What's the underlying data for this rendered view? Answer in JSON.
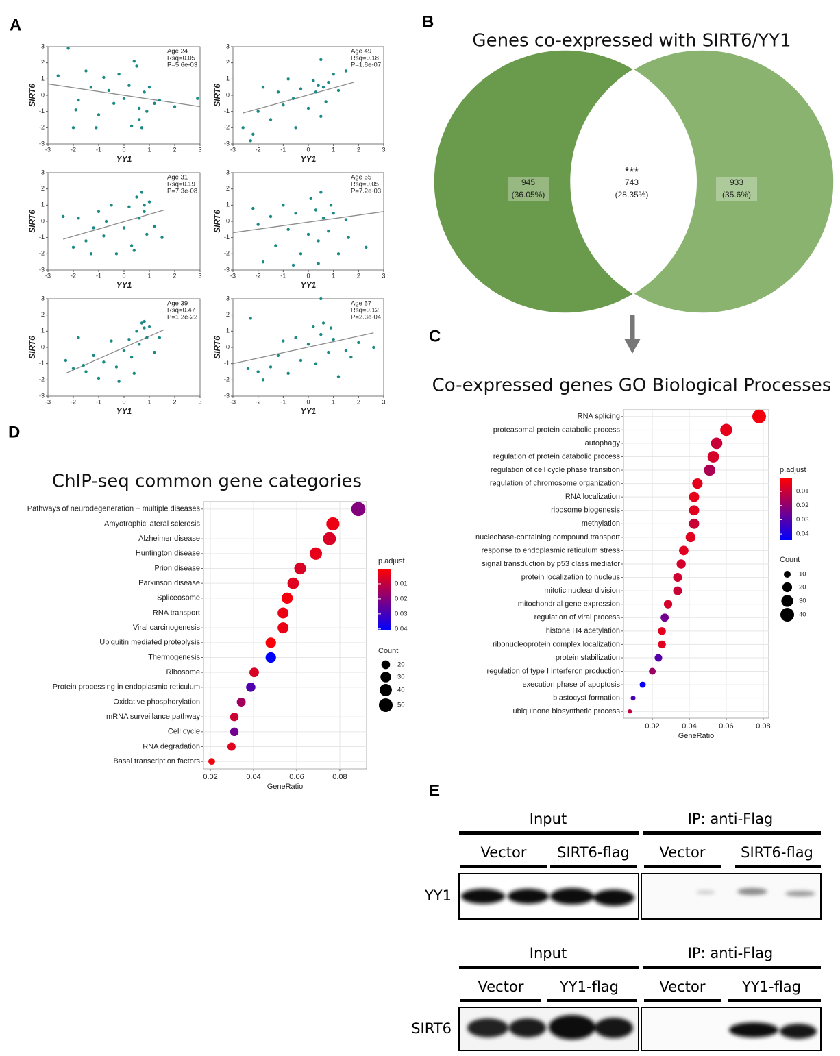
{
  "panel_labels": [
    "A",
    "B",
    "C",
    "D",
    "E"
  ],
  "chart_data": [
    {
      "type": "scatter",
      "annotation": [
        "Age 24",
        "Rsq=0.05",
        "P=5.6e-03"
      ],
      "x_label": "YY1",
      "y_label": "SIRT6",
      "x": [
        -2.6,
        -2.2,
        -2.0,
        -1.8,
        -1.5,
        -1.3,
        -1.0,
        -0.8,
        -0.6,
        -0.4,
        -0.2,
        0,
        0.2,
        0.3,
        0.5,
        0.6,
        0.7,
        0.8,
        0.9,
        1.0,
        1.2,
        1.4,
        2.0,
        2.9,
        -1.9,
        0.4,
        0.6,
        -1.1
      ],
      "values": [
        1.2,
        2.9,
        -2.0,
        -0.3,
        1.5,
        0.5,
        -1.2,
        1.1,
        0.3,
        -0.5,
        1.3,
        -0.2,
        0.6,
        -1.9,
        1.8,
        -0.8,
        -2.0,
        0.2,
        -1.0,
        0.5,
        -0.5,
        -0.3,
        -0.7,
        -0.2,
        -0.9,
        2.1,
        -1.5,
        -2.0
      ],
      "trend": {
        "x": [
          -3,
          3
        ],
        "values": [
          0.7,
          -0.7
        ]
      },
      "xlim": [
        -3,
        3
      ],
      "ylim": [
        -3,
        3
      ],
      "xticks": [
        -3,
        -2,
        -1,
        0,
        1,
        2,
        3
      ],
      "yticks": [
        -3,
        -2,
        -1,
        0,
        1,
        2,
        3
      ],
      "color": "#1b8a84",
      "trend_color": "#8c8c8c"
    },
    {
      "type": "scatter",
      "annotation": [
        "Age 49",
        "Rsq=0.18",
        "P=1.8e-07"
      ],
      "x_label": "YY1",
      "y_label": "SIRT6",
      "x": [
        -2.6,
        -2.3,
        -2.0,
        -1.8,
        -1.5,
        -1.2,
        -1.0,
        -0.8,
        -0.5,
        -0.3,
        0,
        0.2,
        0.3,
        0.4,
        0.5,
        0.6,
        0.7,
        0.8,
        1.0,
        1.2,
        1.5,
        -2.2,
        0.5,
        -0.6
      ],
      "values": [
        -2.0,
        -2.8,
        -1.0,
        0.5,
        -1.5,
        0.2,
        -0.6,
        1.0,
        -2.0,
        0.4,
        -0.8,
        0.9,
        0.2,
        0.6,
        2.2,
        0.5,
        -0.4,
        0.8,
        1.3,
        0.3,
        1.5,
        -2.4,
        -1.3,
        -0.2
      ],
      "trend": {
        "x": [
          -2.6,
          1.8
        ],
        "values": [
          -1.1,
          0.8
        ]
      },
      "xlim": [
        -3,
        3
      ],
      "ylim": [
        -3,
        3
      ],
      "xticks": [
        -3,
        -2,
        -1,
        0,
        1,
        2,
        3
      ],
      "yticks": [
        -3,
        -2,
        -1,
        0,
        1,
        2,
        3
      ],
      "color": "#1b8a84",
      "trend_color": "#8c8c8c"
    },
    {
      "type": "scatter",
      "annotation": [
        "Age 31",
        "Rsq=0.19",
        "P=7.3e-08"
      ],
      "x_label": "YY1",
      "y_label": "SIRT6",
      "x": [
        -2.4,
        -2.0,
        -1.8,
        -1.5,
        -1.3,
        -1.0,
        -0.8,
        -0.5,
        -0.3,
        0,
        0.2,
        0.3,
        0.5,
        0.6,
        0.7,
        0.8,
        0.9,
        1.0,
        1.2,
        1.5,
        -1.2,
        0.4,
        0.8,
        -0.7
      ],
      "values": [
        0.3,
        -1.6,
        0.2,
        -1.2,
        -2.0,
        0.6,
        -0.9,
        1.0,
        -2.0,
        -0.4,
        0.9,
        -1.5,
        1.5,
        0.2,
        1.8,
        0.6,
        -0.8,
        1.2,
        -0.3,
        -1.0,
        -0.4,
        -1.8,
        1.0,
        0.0
      ],
      "trend": {
        "x": [
          -2.4,
          1.6
        ],
        "values": [
          -1.1,
          0.7
        ]
      },
      "xlim": [
        -3,
        3
      ],
      "ylim": [
        -3,
        3
      ],
      "xticks": [
        -3,
        -2,
        -1,
        0,
        1,
        2,
        3
      ],
      "yticks": [
        -3,
        -2,
        -1,
        0,
        1,
        2,
        3
      ],
      "color": "#1b8a84",
      "trend_color": "#8c8c8c"
    },
    {
      "type": "scatter",
      "annotation": [
        "Age 55",
        "Rsq=0.05",
        "P=7.2e-03"
      ],
      "x_label": "YY1",
      "y_label": "SIRT6",
      "x": [
        -2.2,
        -1.8,
        -1.5,
        -1.3,
        -1.0,
        -0.8,
        -0.5,
        -0.3,
        0,
        0.1,
        0.3,
        0.4,
        0.5,
        0.6,
        0.8,
        1.0,
        1.2,
        1.5,
        2.3,
        -2.0,
        -0.6,
        0.4,
        0.9,
        1.6
      ],
      "values": [
        0.8,
        -2.5,
        0.3,
        -1.5,
        1.0,
        -0.5,
        0.5,
        -2.0,
        -0.8,
        1.4,
        0.7,
        -1.2,
        1.8,
        0.2,
        -0.6,
        0.5,
        -2.0,
        0.1,
        -1.6,
        -0.2,
        -2.7,
        -2.6,
        1.0,
        -1.0
      ],
      "trend": {
        "x": [
          -3,
          3
        ],
        "values": [
          -0.7,
          0.6
        ]
      },
      "xlim": [
        -3,
        3
      ],
      "ylim": [
        -3,
        3
      ],
      "xticks": [
        -3,
        -2,
        -1,
        0,
        1,
        2,
        3
      ],
      "yticks": [
        -3,
        -2,
        -1,
        0,
        1,
        2,
        3
      ],
      "color": "#1b8a84",
      "trend_color": "#8c8c8c"
    },
    {
      "type": "scatter",
      "annotation": [
        "Age 39",
        "Rsq=0.47",
        "P=1.2e-22"
      ],
      "x_label": "YY1",
      "y_label": "SIRT6",
      "x": [
        -2.3,
        -2.0,
        -1.8,
        -1.5,
        -1.2,
        -1.0,
        -0.8,
        -0.5,
        -0.3,
        0,
        0.2,
        0.3,
        0.5,
        0.6,
        0.7,
        0.8,
        0.9,
        1.0,
        1.2,
        1.4,
        -1.6,
        0.4,
        0.8,
        -0.2
      ],
      "values": [
        -0.8,
        -1.3,
        0.6,
        -1.5,
        -0.5,
        -1.9,
        -0.9,
        0.4,
        -1.2,
        -0.2,
        0.5,
        -0.6,
        1.0,
        0.2,
        1.5,
        1.2,
        0.6,
        1.3,
        -0.3,
        0.6,
        -1.1,
        -1.6,
        1.6,
        -2.1
      ],
      "trend": {
        "x": [
          -2.3,
          1.6
        ],
        "values": [
          -1.6,
          1.1
        ]
      },
      "xlim": [
        -3,
        3
      ],
      "ylim": [
        -3,
        3
      ],
      "xticks": [
        -3,
        -2,
        -1,
        0,
        1,
        2,
        3
      ],
      "yticks": [
        -3,
        -2,
        -1,
        0,
        1,
        2,
        3
      ],
      "color": "#1b8a84",
      "trend_color": "#8c8c8c"
    },
    {
      "type": "scatter",
      "annotation": [
        "Age 57",
        "Rsq=0.12",
        "P=2.3e-04"
      ],
      "x_label": "YY1",
      "y_label": "SIRT6",
      "x": [
        -2.3,
        -2.0,
        -1.8,
        -1.5,
        -1.2,
        -1.0,
        -0.8,
        -0.5,
        -0.3,
        0,
        0.2,
        0.3,
        0.5,
        0.6,
        0.8,
        1.0,
        1.2,
        1.5,
        2.0,
        2.6,
        -2.4,
        0.5,
        0.9,
        1.7
      ],
      "values": [
        1.8,
        -1.5,
        -2.0,
        -1.2,
        -0.5,
        0.4,
        -1.6,
        0.6,
        -0.8,
        0.2,
        1.3,
        -1.0,
        0.8,
        1.5,
        -0.3,
        0.5,
        -1.8,
        -0.2,
        0.3,
        0.0,
        -1.3,
        3.0,
        1.2,
        -0.6
      ],
      "trend": {
        "x": [
          -3,
          2.6
        ],
        "values": [
          -1.0,
          0.9
        ]
      },
      "xlim": [
        -3,
        3
      ],
      "ylim": [
        -3,
        3
      ],
      "xticks": [
        -3,
        -2,
        -1,
        0,
        1,
        2,
        3
      ],
      "yticks": [
        -3,
        -2,
        -1,
        0,
        1,
        2,
        3
      ],
      "color": "#1b8a84",
      "trend_color": "#8c8c8c"
    },
    {
      "type": "venn",
      "title": "Genes co-expressed with SIRT6/YY1",
      "values": [
        945,
        743,
        933
      ],
      "percents": [
        36.05,
        28.35,
        35.6
      ],
      "percent_labels": [
        "(36.05%)",
        "(28.35%)",
        "(35.6%)"
      ],
      "colors": [
        "#6a9a4b",
        "#8ab36f"
      ],
      "significance": "***"
    },
    {
      "type": "dot",
      "title": "Co-expressed genes GO Biological Processes",
      "x_label": "GeneRatio",
      "categories": [
        "RNA splicing",
        "proteasomal protein catabolic process",
        "autophagy",
        "regulation of protein catabolic process",
        "regulation of cell cycle phase transition",
        "regulation of chromosome organization",
        "RNA localization",
        "ribosome biogenesis",
        "methylation",
        "nucleobase-containing compound transport",
        "response to endoplasmic reticulum stress",
        "signal transduction by p53 class mediator",
        "protein localization to nucleus",
        "mitotic nuclear division",
        "mitochondrial gene expression",
        "regulation of viral process",
        "histone H4 acetylation",
        "ribonucleoprotein complex localization",
        "protein stabilization",
        "regulation of type I interferon production",
        "execution phase of apoptosis",
        "blastocyst formation",
        "ubiquinone biosynthetic process"
      ],
      "values": [
        0.0778,
        0.06,
        0.0548,
        0.053,
        0.051,
        0.0444,
        0.0426,
        0.0426,
        0.0426,
        0.0407,
        0.037,
        0.0356,
        0.0337,
        0.0337,
        0.0285,
        0.0267,
        0.0252,
        0.0252,
        0.0233,
        0.02,
        0.0148,
        0.0096,
        0.0078
      ],
      "counts": [
        40,
        31,
        28,
        28,
        27,
        23,
        22,
        22,
        22,
        21,
        19,
        18,
        17,
        17,
        15,
        14,
        13,
        13,
        12,
        10,
        8,
        5,
        4
      ],
      "p_adjust": [
        0.003,
        0.005,
        0.01,
        0.008,
        0.015,
        0.005,
        0.005,
        0.006,
        0.01,
        0.006,
        0.006,
        0.008,
        0.009,
        0.01,
        0.008,
        0.025,
        0.006,
        0.006,
        0.03,
        0.018,
        0.043,
        0.032,
        0.012
      ],
      "xlim": [
        0.0044,
        0.083
      ],
      "xticks": [
        0.02,
        0.04,
        0.06,
        0.08
      ],
      "color_title": "p.adjust",
      "color_lim": [
        0.0008,
        0.0443
      ],
      "color_ticks": [
        0.01,
        0.02,
        0.03,
        0.04
      ],
      "colors": [
        "#ff0000",
        "#0000ff"
      ],
      "size_title": "Count",
      "size_ticks": [
        10,
        20,
        30,
        40
      ]
    },
    {
      "type": "dot",
      "title": "ChIP-seq common gene categories",
      "x_label": "GeneRatio",
      "categories": [
        "Pathways of neurodegeneration − multiple diseases",
        "Amyotrophic lateral sclerosis",
        "Alzheimer disease",
        "Huntington disease",
        "Prion disease",
        "Parkinson disease",
        "Spliceosome",
        "RNA transport",
        "Viral carcinogenesis",
        "Ubiquitin mediated proteolysis",
        "Thermogenesis",
        "Ribosome",
        "Protein processing in endoplasmic reticulum",
        "Oxidative phosphorylation",
        "mRNA surveillance pathway",
        "Cell cycle",
        "RNA degradation",
        "Basal transcription factors"
      ],
      "values": [
        0.0886,
        0.0768,
        0.0752,
        0.0689,
        0.0616,
        0.0584,
        0.0556,
        0.0537,
        0.0537,
        0.048,
        0.048,
        0.0403,
        0.0387,
        0.0343,
        0.0311,
        0.0311,
        0.0298,
        0.0206
      ],
      "counts": [
        53,
        46,
        45,
        41,
        37,
        35,
        33,
        32,
        32,
        29,
        29,
        24,
        23,
        21,
        19,
        19,
        18,
        12
      ],
      "p_adjust": [
        0.02,
        0.003,
        0.006,
        0.004,
        0.006,
        0.005,
        0.002,
        0.003,
        0.003,
        0.001,
        0.043,
        0.006,
        0.028,
        0.015,
        0.008,
        0.023,
        0.005,
        0.002
      ],
      "xlim": [
        0.0168,
        0.0924
      ],
      "xticks": [
        0.02,
        0.04,
        0.06,
        0.08
      ],
      "color_title": "p.adjust",
      "color_lim": [
        0.0,
        0.041
      ],
      "color_ticks": [
        0.01,
        0.02,
        0.03,
        0.04
      ],
      "colors": [
        "#ff0000",
        "#0000ff"
      ],
      "size_title": "Count",
      "size_ticks": [
        20,
        30,
        40,
        50
      ]
    }
  ],
  "blots": [
    {
      "headers": [
        "Input",
        "IP: anti-Flag"
      ],
      "lanes": [
        "Vector",
        "SIRT6-flag",
        "Vector",
        "SIRT6-flag"
      ],
      "protein": "YY1"
    },
    {
      "headers": [
        "Input",
        "IP: anti-Flag"
      ],
      "lanes": [
        "Vector",
        "YY1-flag",
        "Vector",
        "YY1-flag"
      ],
      "protein": "SIRT6"
    }
  ]
}
